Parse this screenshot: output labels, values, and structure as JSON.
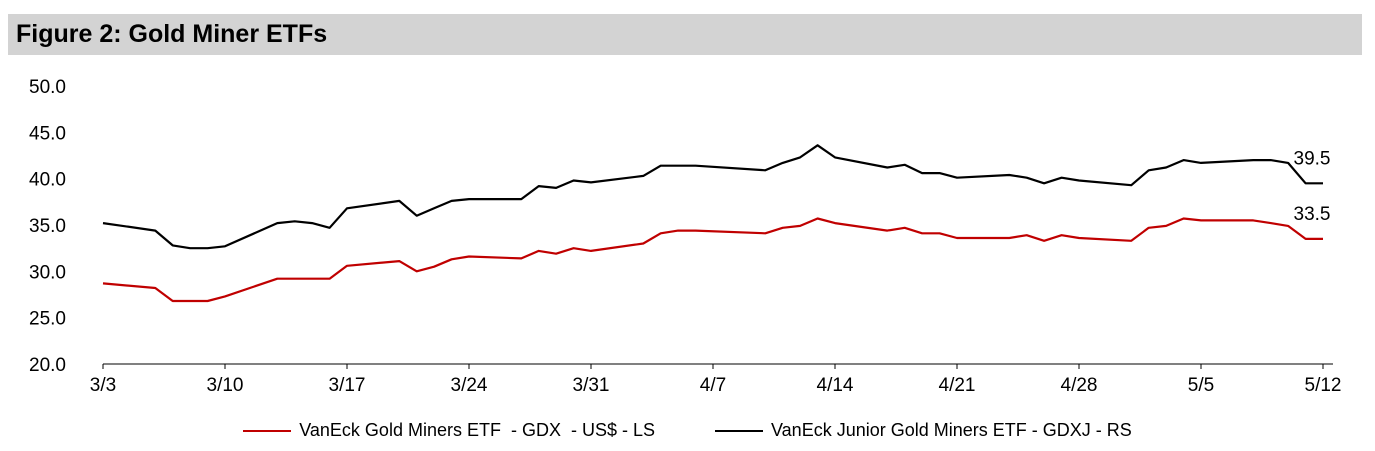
{
  "chart_data": {
    "type": "line",
    "title": "Figure 2: Gold Miner ETFs",
    "ylim": [
      20,
      50
    ],
    "yticks": [
      "20.0",
      "25.0",
      "30.0",
      "35.0",
      "40.0",
      "45.0",
      "50.0"
    ],
    "xticks": [
      "3/3",
      "3/10",
      "3/17",
      "3/24",
      "3/31",
      "4/7",
      "4/14",
      "4/21",
      "4/28",
      "5/5",
      "5/12"
    ],
    "grid": false,
    "legend_position": "bottom",
    "series": [
      {
        "name": "VanEck Gold Miners ETF  - GDX  - US$ - LS",
        "color": "#c00000",
        "end_label": "33.5",
        "x": [
          "3/3",
          "3/6",
          "3/7",
          "3/8",
          "3/9",
          "3/10",
          "3/13",
          "3/14",
          "3/15",
          "3/16",
          "3/17",
          "3/20",
          "3/21",
          "3/22",
          "3/23",
          "3/24",
          "3/27",
          "3/28",
          "3/29",
          "3/30",
          "3/31",
          "4/3",
          "4/4",
          "4/5",
          "4/6",
          "4/10",
          "4/11",
          "4/12",
          "4/13",
          "4/14",
          "4/17",
          "4/18",
          "4/19",
          "4/20",
          "4/21",
          "4/24",
          "4/25",
          "4/26",
          "4/27",
          "4/28",
          "5/1",
          "5/2",
          "5/3",
          "5/4",
          "5/5",
          "5/8",
          "5/9",
          "5/10",
          "5/11",
          "5/12"
        ],
        "values": [
          28.7,
          28.2,
          26.8,
          26.8,
          26.8,
          27.3,
          29.2,
          29.2,
          29.2,
          29.2,
          30.6,
          31.1,
          30.0,
          30.5,
          31.3,
          31.6,
          31.4,
          32.2,
          31.9,
          32.5,
          32.2,
          33.0,
          34.1,
          34.4,
          34.4,
          34.1,
          34.7,
          34.9,
          35.7,
          35.2,
          34.4,
          34.7,
          34.1,
          34.1,
          33.6,
          33.6,
          33.9,
          33.3,
          33.9,
          33.6,
          33.3,
          34.7,
          34.9,
          35.7,
          35.5,
          35.5,
          35.2,
          34.9,
          33.5,
          33.5
        ]
      },
      {
        "name": "VanEck Junior Gold Miners ETF - GDXJ - RS",
        "color": "#000000",
        "end_label": "39.5",
        "x": [
          "3/3",
          "3/6",
          "3/7",
          "3/8",
          "3/9",
          "3/10",
          "3/13",
          "3/14",
          "3/15",
          "3/16",
          "3/17",
          "3/20",
          "3/21",
          "3/22",
          "3/23",
          "3/24",
          "3/27",
          "3/28",
          "3/29",
          "3/30",
          "3/31",
          "4/3",
          "4/4",
          "4/5",
          "4/6",
          "4/10",
          "4/11",
          "4/12",
          "4/13",
          "4/14",
          "4/17",
          "4/18",
          "4/19",
          "4/20",
          "4/21",
          "4/24",
          "4/25",
          "4/26",
          "4/27",
          "4/28",
          "5/1",
          "5/2",
          "5/3",
          "5/4",
          "5/5",
          "5/8",
          "5/9",
          "5/10",
          "5/11",
          "5/12"
        ],
        "values": [
          35.2,
          34.4,
          32.8,
          32.5,
          32.5,
          32.7,
          35.2,
          35.4,
          35.2,
          34.7,
          36.8,
          37.6,
          36.0,
          36.8,
          37.6,
          37.8,
          37.8,
          39.2,
          39.0,
          39.8,
          39.6,
          40.3,
          41.4,
          41.4,
          41.4,
          40.9,
          41.7,
          42.3,
          43.6,
          42.3,
          41.2,
          41.5,
          40.6,
          40.6,
          40.1,
          40.4,
          40.1,
          39.5,
          40.1,
          39.8,
          39.3,
          40.9,
          41.2,
          42.0,
          41.7,
          42.0,
          42.0,
          41.7,
          39.5,
          39.5
        ]
      }
    ]
  }
}
